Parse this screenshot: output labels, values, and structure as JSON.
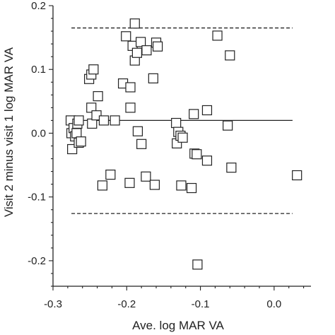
{
  "chart_data": {
    "type": "scatter",
    "xlabel": "Ave. log MAR VA",
    "ylabel": "Visit 2 minus visit 1 log MAR VA",
    "xlim": [
      -0.3,
      0.05
    ],
    "ylim": [
      -0.24,
      0.2
    ],
    "xticks": [
      "-0.3",
      "-0.2",
      "-0.1",
      "0.0"
    ],
    "yticks": [
      "0.2",
      "0.1",
      "0.0",
      "-0.1",
      "-0.2"
    ],
    "grid": false,
    "marker": "open-square",
    "reference_lines": {
      "mean": 0.02,
      "upper_limit": 0.165,
      "lower_limit": -0.126
    },
    "points": [
      [
        -0.276,
        0.02
      ],
      [
        -0.275,
        0.0
      ],
      [
        -0.274,
        -0.025
      ],
      [
        -0.272,
        0.008
      ],
      [
        -0.27,
        -0.005
      ],
      [
        -0.268,
        0.0
      ],
      [
        -0.267,
        0.015
      ],
      [
        -0.265,
        0.02
      ],
      [
        -0.265,
        -0.015
      ],
      [
        -0.262,
        -0.013
      ],
      [
        -0.251,
        0.085
      ],
      [
        -0.248,
        0.092
      ],
      [
        -0.245,
        0.1
      ],
      [
        -0.248,
        0.04
      ],
      [
        -0.247,
        0.015
      ],
      [
        -0.241,
        0.028
      ],
      [
        -0.239,
        0.058
      ],
      [
        -0.233,
        -0.082
      ],
      [
        -0.231,
        0.02
      ],
      [
        -0.222,
        -0.065
      ],
      [
        -0.216,
        0.02
      ],
      [
        -0.205,
        0.078
      ],
      [
        -0.201,
        0.152
      ],
      [
        -0.196,
        -0.078
      ],
      [
        -0.195,
        0.072
      ],
      [
        -0.195,
        0.04
      ],
      [
        -0.192,
        0.137
      ],
      [
        -0.189,
        0.172
      ],
      [
        -0.189,
        0.114
      ],
      [
        -0.186,
        0.126
      ],
      [
        -0.185,
        0.003
      ],
      [
        -0.181,
        0.143
      ],
      [
        -0.18,
        -0.017
      ],
      [
        -0.174,
        -0.068
      ],
      [
        -0.173,
        0.13
      ],
      [
        -0.164,
        0.086
      ],
      [
        -0.162,
        -0.081
      ],
      [
        -0.16,
        0.142
      ],
      [
        -0.158,
        0.136
      ],
      [
        -0.133,
        0.016
      ],
      [
        -0.132,
        -0.016
      ],
      [
        -0.13,
        0.002
      ],
      [
        -0.127,
        -0.004
      ],
      [
        -0.126,
        -0.082
      ],
      [
        -0.124,
        -0.007
      ],
      [
        -0.112,
        -0.086
      ],
      [
        -0.109,
        0.03
      ],
      [
        -0.108,
        -0.032
      ],
      [
        -0.105,
        -0.033
      ],
      [
        -0.104,
        -0.206
      ],
      [
        -0.091,
        0.036
      ],
      [
        -0.091,
        -0.043
      ],
      [
        -0.077,
        0.153
      ],
      [
        -0.063,
        0.012
      ],
      [
        -0.06,
        0.122
      ],
      [
        -0.058,
        -0.054
      ],
      [
        0.031,
        -0.066
      ]
    ]
  }
}
